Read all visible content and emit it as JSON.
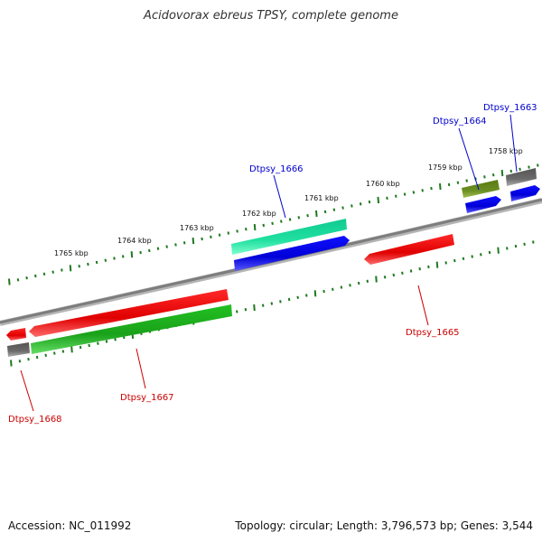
{
  "title": "Acidovorax ebreus TPSY, complete genome",
  "footer": {
    "accession": "Accession: NC_011992",
    "summary": "Topology: circular; Length: 3,796,573 bp; Genes: 3,544"
  },
  "colors": {
    "forward_label": "#0000cc",
    "reverse_label": "#cc0000",
    "tick": "#1e7a1e",
    "backbone": "#808080"
  },
  "ticks": [
    {
      "label": "1758 kbp"
    },
    {
      "label": "1759 kbp"
    },
    {
      "label": "1760 kbp"
    },
    {
      "label": "1761 kbp"
    },
    {
      "label": "1762 kbp"
    },
    {
      "label": "1763 kbp"
    },
    {
      "label": "1764 kbp"
    },
    {
      "label": "1765 kbp"
    }
  ],
  "genes": [
    {
      "name": "Dtpsy_1663",
      "strand": "forward"
    },
    {
      "name": "Dtpsy_1664",
      "strand": "forward"
    },
    {
      "name": "Dtpsy_1665",
      "strand": "reverse"
    },
    {
      "name": "Dtpsy_1666",
      "strand": "forward"
    },
    {
      "name": "Dtpsy_1667",
      "strand": "reverse"
    },
    {
      "name": "Dtpsy_1668",
      "strand": "reverse"
    }
  ]
}
